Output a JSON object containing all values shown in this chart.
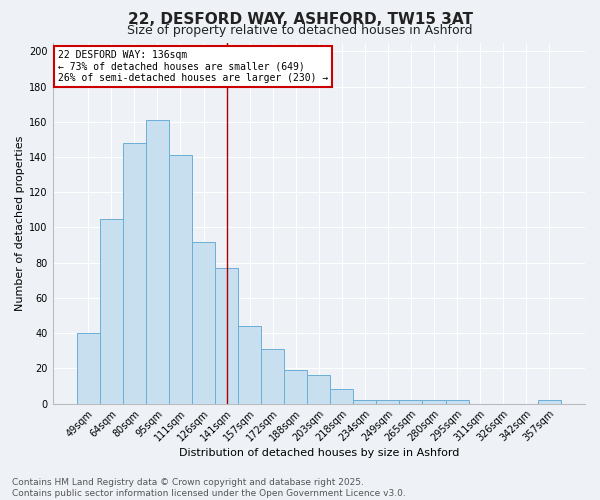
{
  "title": "22, DESFORD WAY, ASHFORD, TW15 3AT",
  "subtitle": "Size of property relative to detached houses in Ashford",
  "xlabel": "Distribution of detached houses by size in Ashford",
  "ylabel": "Number of detached properties",
  "bar_labels": [
    "49sqm",
    "64sqm",
    "80sqm",
    "95sqm",
    "111sqm",
    "126sqm",
    "141sqm",
    "157sqm",
    "172sqm",
    "188sqm",
    "203sqm",
    "218sqm",
    "234sqm",
    "249sqm",
    "265sqm",
    "280sqm",
    "295sqm",
    "311sqm",
    "326sqm",
    "342sqm",
    "357sqm"
  ],
  "bar_values": [
    40,
    105,
    148,
    161,
    141,
    92,
    77,
    44,
    31,
    19,
    16,
    8,
    2,
    2,
    2,
    2,
    2,
    0,
    0,
    0,
    2
  ],
  "bar_color": "#c8dff0",
  "bar_edge_color": "#6aaed6",
  "vline_x": 6.0,
  "vline_color": "#aa0000",
  "annotation_text": "22 DESFORD WAY: 136sqm\n← 73% of detached houses are smaller (649)\n26% of semi-detached houses are larger (230) →",
  "annotation_box_color": "#ffffff",
  "annotation_box_edge": "#cc0000",
  "ylim": [
    0,
    205
  ],
  "yticks": [
    0,
    20,
    40,
    60,
    80,
    100,
    120,
    140,
    160,
    180,
    200
  ],
  "background_color": "#eef2f7",
  "grid_color": "#ffffff",
  "footer_line1": "Contains HM Land Registry data © Crown copyright and database right 2025.",
  "footer_line2": "Contains public sector information licensed under the Open Government Licence v3.0.",
  "title_fontsize": 11,
  "subtitle_fontsize": 9,
  "axis_label_fontsize": 8,
  "tick_fontsize": 7,
  "annotation_fontsize": 7,
  "footer_fontsize": 6.5
}
